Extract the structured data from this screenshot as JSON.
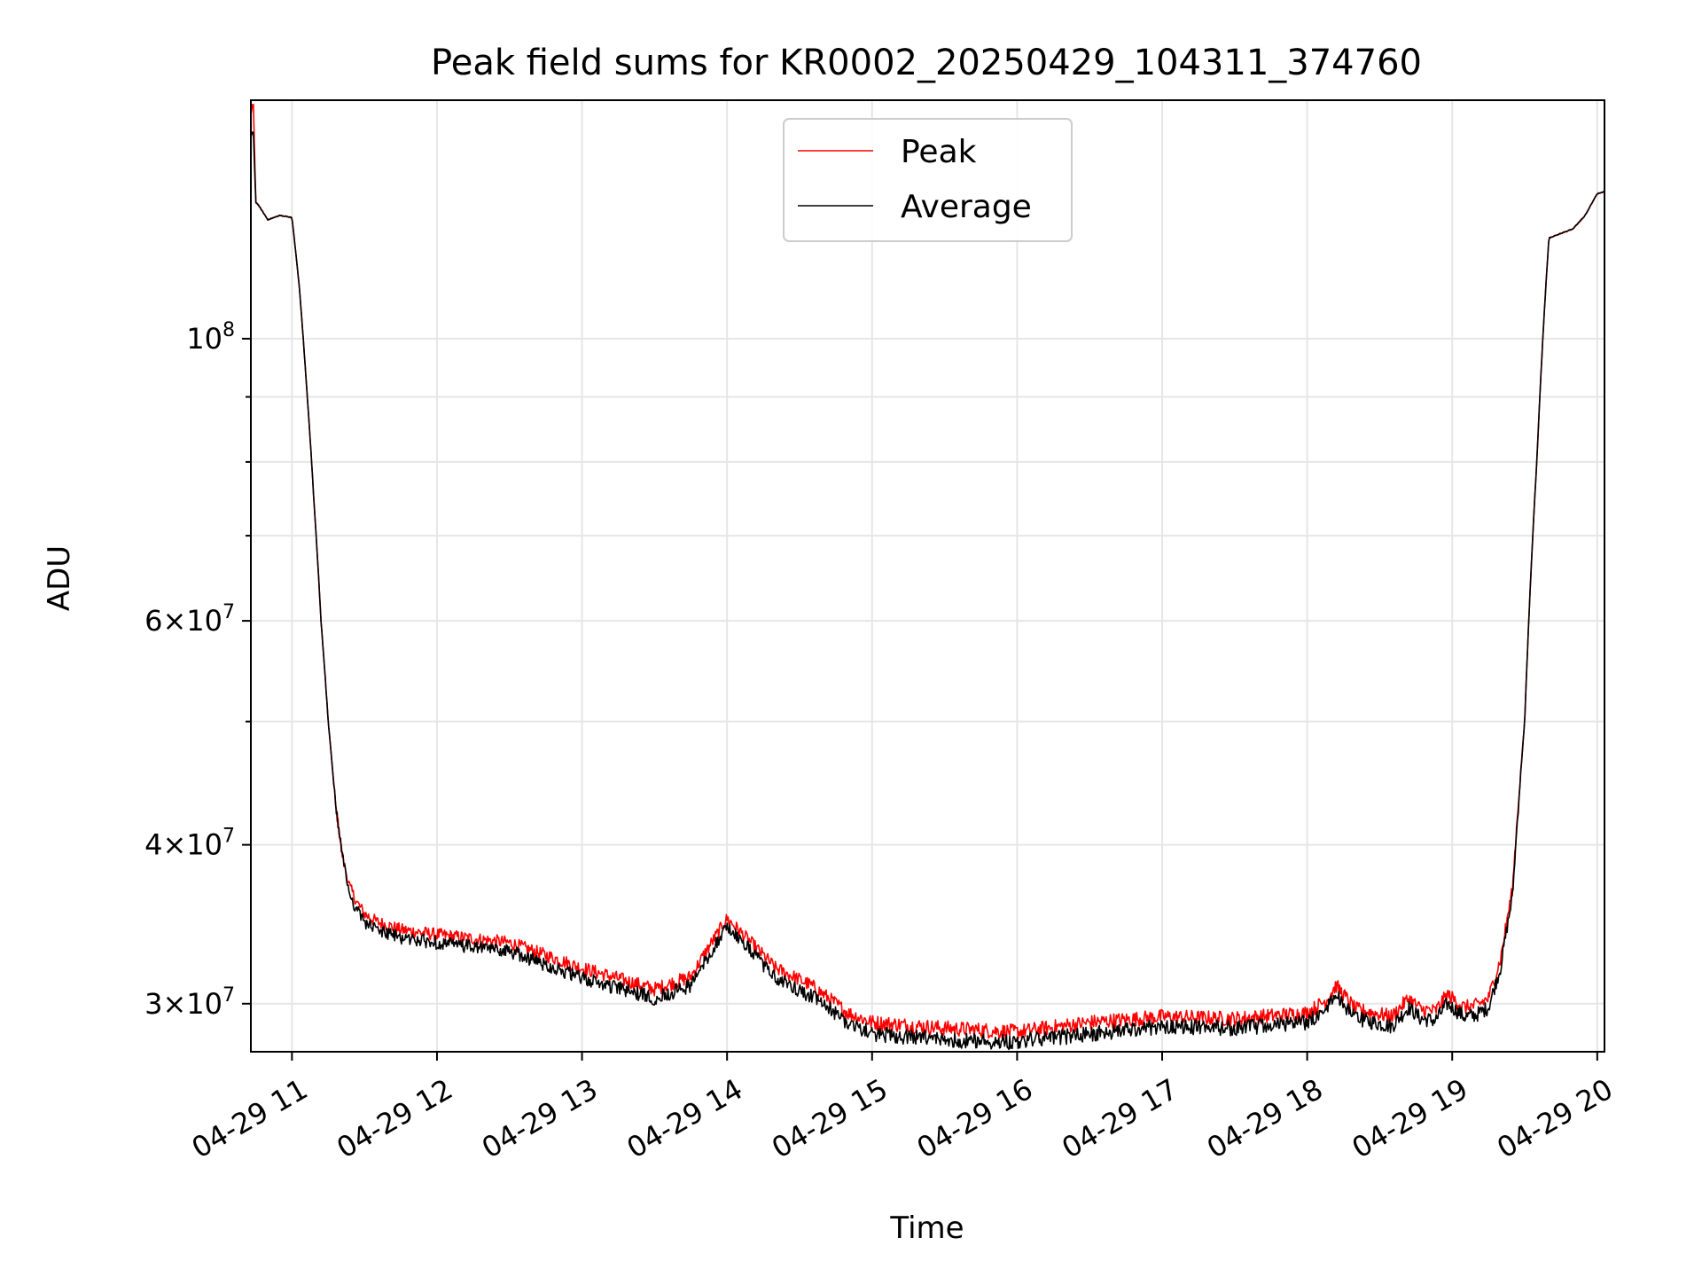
{
  "chart_data": {
    "type": "line",
    "title": "Peak field sums for KR0002_20250429_104311_374760",
    "xlabel": "Time",
    "ylabel": "ADU",
    "y_scale": "log",
    "grid": true,
    "legend_position": "top-center",
    "xlim": [
      "2025-04-29 10:43",
      "2025-04-29 20:03"
    ],
    "ylim": [
      27500000,
      154000000
    ],
    "x_ticks": [
      {
        "value": "2025-04-29 11:00",
        "label": "04-29 11"
      },
      {
        "value": "2025-04-29 12:00",
        "label": "04-29 12"
      },
      {
        "value": "2025-04-29 13:00",
        "label": "04-29 13"
      },
      {
        "value": "2025-04-29 14:00",
        "label": "04-29 14"
      },
      {
        "value": "2025-04-29 15:00",
        "label": "04-29 15"
      },
      {
        "value": "2025-04-29 16:00",
        "label": "04-29 16"
      },
      {
        "value": "2025-04-29 17:00",
        "label": "04-29 17"
      },
      {
        "value": "2025-04-29 18:00",
        "label": "04-29 18"
      },
      {
        "value": "2025-04-29 19:00",
        "label": "04-29 19"
      },
      {
        "value": "2025-04-29 20:00",
        "label": "04-29 20"
      }
    ],
    "y_major_ticks": [
      {
        "value": 30000000,
        "mantissa": "3",
        "exponent": "7"
      },
      {
        "value": 40000000,
        "mantissa": "4",
        "exponent": "7"
      },
      {
        "value": 60000000,
        "mantissa": "6",
        "exponent": "7"
      },
      {
        "value": 100000000,
        "mantissa": "",
        "exponent": "8"
      }
    ],
    "y_minor_ticks": [
      50000000,
      70000000,
      80000000,
      90000000
    ],
    "series": [
      {
        "name": "Peak",
        "color": "#ff0000",
        "noise": 400000,
        "x": [
          "2025-04-29 10:43",
          "2025-04-29 10:44",
          "2025-04-29 10:45",
          "2025-04-29 10:46",
          "2025-04-29 10:50",
          "2025-04-29 10:55",
          "2025-04-29 11:00",
          "2025-04-29 11:03",
          "2025-04-29 11:06",
          "2025-04-29 11:09",
          "2025-04-29 11:12",
          "2025-04-29 11:15",
          "2025-04-29 11:18",
          "2025-04-29 11:21",
          "2025-04-29 11:24",
          "2025-04-29 11:27",
          "2025-04-29 11:30",
          "2025-04-29 11:35",
          "2025-04-29 11:45",
          "2025-04-29 12:00",
          "2025-04-29 12:30",
          "2025-04-29 13:00",
          "2025-04-29 13:30",
          "2025-04-29 13:45",
          "2025-04-29 14:00",
          "2025-04-29 14:10",
          "2025-04-29 14:20",
          "2025-04-29 14:35",
          "2025-04-29 14:50",
          "2025-04-29 15:00",
          "2025-04-29 15:30",
          "2025-04-29 16:00",
          "2025-04-29 16:30",
          "2025-04-29 17:00",
          "2025-04-29 17:30",
          "2025-04-29 18:00",
          "2025-04-29 18:08",
          "2025-04-29 18:12",
          "2025-04-29 18:20",
          "2025-04-29 18:35",
          "2025-04-29 18:42",
          "2025-04-29 18:47",
          "2025-04-29 18:53",
          "2025-04-29 18:58",
          "2025-04-29 19:05",
          "2025-04-29 19:10",
          "2025-04-29 19:15",
          "2025-04-29 19:20",
          "2025-04-29 19:25",
          "2025-04-29 19:30",
          "2025-04-29 19:35",
          "2025-04-29 19:40",
          "2025-04-29 19:45",
          "2025-04-29 19:50",
          "2025-04-29 19:55",
          "2025-04-29 20:00",
          "2025-04-29 20:03"
        ],
        "y": [
          150000000,
          154000000,
          128000000,
          127500000,
          124000000,
          125000000,
          124500000,
          110000000,
          92000000,
          75000000,
          60000000,
          50000000,
          43000000,
          39000000,
          37000000,
          36000000,
          35300000,
          34800000,
          34300000,
          34000000,
          33500000,
          32000000,
          30800000,
          31500000,
          35000000,
          33500000,
          32000000,
          31000000,
          29500000,
          29000000,
          28700000,
          28500000,
          29000000,
          29300000,
          29200000,
          29500000,
          30200000,
          31000000,
          29700000,
          29300000,
          30300000,
          29700000,
          29600000,
          30500000,
          29800000,
          29900000,
          30300000,
          32500000,
          37000000,
          50000000,
          80000000,
          120000000,
          121000000,
          122000000,
          125000000,
          130000000,
          130500000
        ]
      },
      {
        "name": "Average",
        "color": "#000000",
        "noise": 400000,
        "x": [
          "2025-04-29 10:43",
          "2025-04-29 10:44",
          "2025-04-29 10:45",
          "2025-04-29 10:46",
          "2025-04-29 10:50",
          "2025-04-29 10:55",
          "2025-04-29 11:00",
          "2025-04-29 11:03",
          "2025-04-29 11:06",
          "2025-04-29 11:09",
          "2025-04-29 11:12",
          "2025-04-29 11:15",
          "2025-04-29 11:18",
          "2025-04-29 11:21",
          "2025-04-29 11:24",
          "2025-04-29 11:27",
          "2025-04-29 11:30",
          "2025-04-29 11:35",
          "2025-04-29 11:45",
          "2025-04-29 12:00",
          "2025-04-29 12:30",
          "2025-04-29 13:00",
          "2025-04-29 13:30",
          "2025-04-29 13:45",
          "2025-04-29 14:00",
          "2025-04-29 14:10",
          "2025-04-29 14:20",
          "2025-04-29 14:35",
          "2025-04-29 14:50",
          "2025-04-29 15:00",
          "2025-04-29 15:30",
          "2025-04-29 16:00",
          "2025-04-29 16:30",
          "2025-04-29 17:00",
          "2025-04-29 17:30",
          "2025-04-29 18:00",
          "2025-04-29 18:08",
          "2025-04-29 18:12",
          "2025-04-29 18:20",
          "2025-04-29 18:35",
          "2025-04-29 18:42",
          "2025-04-29 18:47",
          "2025-04-29 18:53",
          "2025-04-29 18:58",
          "2025-04-29 19:05",
          "2025-04-29 19:10",
          "2025-04-29 19:15",
          "2025-04-29 19:20",
          "2025-04-29 19:25",
          "2025-04-29 19:30",
          "2025-04-29 19:35",
          "2025-04-29 19:40",
          "2025-04-29 19:45",
          "2025-04-29 19:50",
          "2025-04-29 19:55",
          "2025-04-29 20:00",
          "2025-04-29 20:03"
        ],
        "y": [
          144000000,
          146000000,
          128000000,
          127500000,
          124000000,
          125000000,
          124500000,
          110000000,
          92000000,
          75000000,
          60000000,
          50000000,
          43000000,
          39000000,
          36500000,
          35500000,
          34800000,
          34300000,
          33800000,
          33500000,
          33000000,
          31400000,
          30300000,
          31000000,
          34500000,
          33000000,
          31400000,
          30400000,
          29000000,
          28400000,
          28100000,
          28000000,
          28400000,
          28800000,
          28700000,
          29000000,
          29700000,
          30500000,
          29200000,
          28800000,
          29800000,
          29200000,
          29100000,
          30000000,
          29300000,
          29400000,
          29800000,
          32000000,
          36500000,
          50000000,
          80000000,
          120000000,
          121000000,
          122000000,
          125000000,
          130000000,
          130500000
        ]
      }
    ]
  }
}
